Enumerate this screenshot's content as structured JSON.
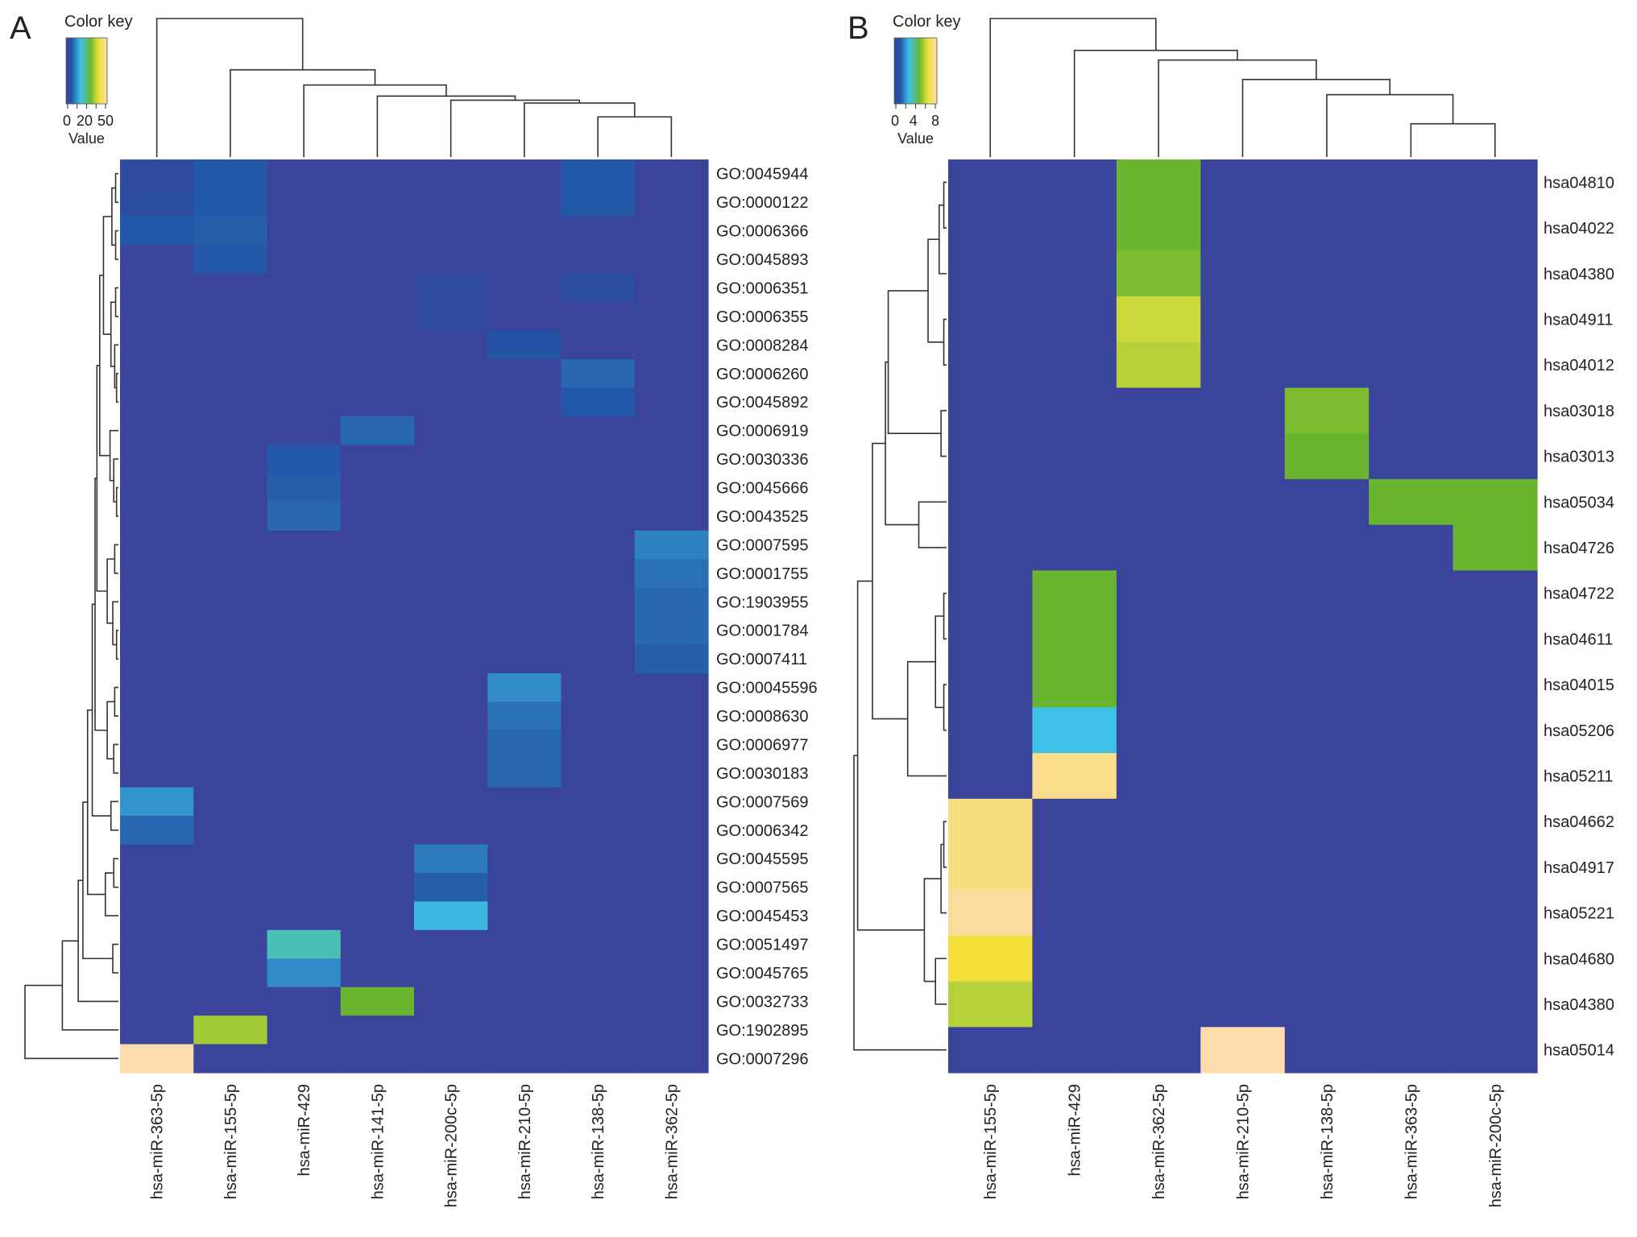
{
  "chart_data": [
    {
      "type": "heatmap",
      "panel_label": "A",
      "color_key": {
        "title": "Color key",
        "xlabel": "Value",
        "ticks": [
          "0",
          "20",
          "50"
        ],
        "range": [
          0,
          55
        ]
      },
      "columns": [
        "hsa-miR-363-5p",
        "hsa-miR-155-5p",
        "hsa-miR-429",
        "hsa-miR-141-5p",
        "hsa-miR-200c-5p",
        "hsa-miR-210-5p",
        "hsa-miR-138-5p",
        "hsa-miR-362-5p"
      ],
      "rows": [
        "GO:0045944",
        "GO:0000122",
        "GO:0006366",
        "GO:0045893",
        "GO:0006351",
        "GO:0006355",
        "GO:0008284",
        "GO:0006260",
        "GO:0045892",
        "GO:0006919",
        "GO:0030336",
        "GO:0045666",
        "GO:0043525",
        "GO:0007595",
        "GO:0001755",
        "GO:1903955",
        "GO:0001784",
        "GO:0007411",
        "GO:00045596",
        "GO:0008630",
        "GO:0006977",
        "GO:0030183",
        "GO:0007569",
        "GO:0006342",
        "GO:0045595",
        "GO:0007565",
        "GO:0045453",
        "GO:0051497",
        "GO:0045765",
        "GO:0032733",
        "GO:1902895",
        "GO:0007296"
      ],
      "values": [
        [
          3,
          7,
          0,
          0,
          0,
          0,
          7,
          0
        ],
        [
          4,
          7,
          0,
          0,
          0,
          0,
          7,
          0
        ],
        [
          7,
          8,
          0,
          0,
          0,
          0,
          0,
          0
        ],
        [
          0,
          7,
          0,
          0,
          0,
          0,
          0,
          0
        ],
        [
          0,
          0,
          0,
          0,
          3,
          0,
          4,
          0
        ],
        [
          0,
          0,
          0,
          0,
          3,
          0,
          0,
          0
        ],
        [
          0,
          0,
          0,
          0,
          0,
          6,
          0,
          0
        ],
        [
          0,
          0,
          0,
          0,
          0,
          0,
          9,
          0
        ],
        [
          0,
          0,
          0,
          0,
          0,
          0,
          7,
          0
        ],
        [
          0,
          0,
          0,
          9,
          0,
          0,
          0,
          0
        ],
        [
          0,
          0,
          7,
          0,
          0,
          0,
          0,
          0
        ],
        [
          0,
          0,
          8,
          0,
          0,
          0,
          0,
          0
        ],
        [
          0,
          0,
          9,
          0,
          0,
          0,
          0,
          0
        ],
        [
          0,
          0,
          0,
          0,
          0,
          0,
          0,
          12
        ],
        [
          0,
          0,
          0,
          0,
          0,
          0,
          0,
          10
        ],
        [
          0,
          0,
          0,
          0,
          0,
          0,
          0,
          9
        ],
        [
          0,
          0,
          0,
          0,
          0,
          0,
          0,
          9
        ],
        [
          0,
          0,
          0,
          0,
          0,
          0,
          0,
          8
        ],
        [
          0,
          0,
          0,
          0,
          0,
          13,
          0,
          0
        ],
        [
          0,
          0,
          0,
          0,
          0,
          10,
          0,
          0
        ],
        [
          0,
          0,
          0,
          0,
          0,
          9,
          0,
          0
        ],
        [
          0,
          0,
          0,
          0,
          0,
          9,
          0,
          0
        ],
        [
          14,
          0,
          0,
          0,
          0,
          0,
          0,
          0
        ],
        [
          9,
          0,
          0,
          0,
          0,
          0,
          0,
          0
        ],
        [
          0,
          0,
          0,
          0,
          11,
          0,
          0,
          0
        ],
        [
          0,
          0,
          0,
          0,
          8,
          0,
          0,
          0
        ],
        [
          0,
          0,
          0,
          0,
          18,
          0,
          0,
          0
        ],
        [
          0,
          0,
          23,
          0,
          0,
          0,
          0,
          0
        ],
        [
          0,
          0,
          13,
          0,
          0,
          0,
          0,
          0
        ],
        [
          0,
          0,
          0,
          33,
          0,
          0,
          0,
          0
        ],
        [
          0,
          38,
          0,
          0,
          0,
          0,
          0,
          0
        ],
        [
          55,
          0,
          0,
          0,
          0,
          0,
          0,
          0
        ]
      ]
    },
    {
      "type": "heatmap",
      "panel_label": "B",
      "color_key": {
        "title": "Color key",
        "xlabel": "Value",
        "ticks": [
          "0",
          "4",
          "8"
        ],
        "range": [
          0,
          10
        ]
      },
      "columns": [
        "hsa-miR-155-5p",
        "hsa-miR-429",
        "hsa-miR-362-5p",
        "hsa-miR-210-5p",
        "hsa-miR-138-5p",
        "hsa-miR-363-5p",
        "hsa-miR-200c-5p"
      ],
      "rows": [
        "hsa04810",
        "hsa04022",
        "hsa04380",
        "hsa04911",
        "hsa04012",
        "hsa03018",
        "hsa03013",
        "hsa05034",
        "hsa04726",
        "hsa04722",
        "hsa04611",
        "hsa04015",
        "hsa05206",
        "hsa05211",
        "hsa04662",
        "hsa04917",
        "hsa05221",
        "hsa04680",
        "hsa04380",
        "hsa05014"
      ],
      "values": [
        [
          0,
          0,
          6,
          0,
          0,
          0,
          0
        ],
        [
          0,
          0,
          6,
          0,
          0,
          0,
          0
        ],
        [
          0,
          0,
          6.3,
          0,
          0,
          0,
          0
        ],
        [
          0,
          0,
          7.5,
          0,
          0,
          0,
          0
        ],
        [
          0,
          0,
          7.2,
          0,
          0,
          0,
          0
        ],
        [
          0,
          0,
          0,
          0,
          6.3,
          0,
          0
        ],
        [
          0,
          0,
          0,
          0,
          6,
          0,
          0
        ],
        [
          0,
          0,
          0,
          0,
          0,
          6,
          6
        ],
        [
          0,
          0,
          0,
          0,
          0,
          0,
          6
        ],
        [
          0,
          6,
          0,
          0,
          0,
          0,
          0
        ],
        [
          0,
          6,
          0,
          0,
          0,
          0,
          0
        ],
        [
          0,
          6,
          0,
          0,
          0,
          0,
          0
        ],
        [
          0,
          3.5,
          0,
          0,
          0,
          0,
          0
        ],
        [
          0,
          9.5,
          0,
          0,
          0,
          0,
          0
        ],
        [
          9.3,
          0,
          0,
          0,
          0,
          0,
          0
        ],
        [
          9.3,
          0,
          0,
          0,
          0,
          0,
          0
        ],
        [
          9.8,
          0,
          0,
          0,
          0,
          0,
          0
        ],
        [
          8.2,
          0,
          0,
          0,
          0,
          0,
          0
        ],
        [
          7.2,
          0,
          0,
          0,
          0,
          0,
          0
        ],
        [
          0,
          0,
          0,
          10,
          0,
          0,
          0
        ]
      ]
    }
  ],
  "palette": [
    "#3b449b",
    "#2253a5",
    "#3fc2e8",
    "#6ab52f",
    "#c9d93a",
    "#f3e03a",
    "#fcdcaa"
  ]
}
